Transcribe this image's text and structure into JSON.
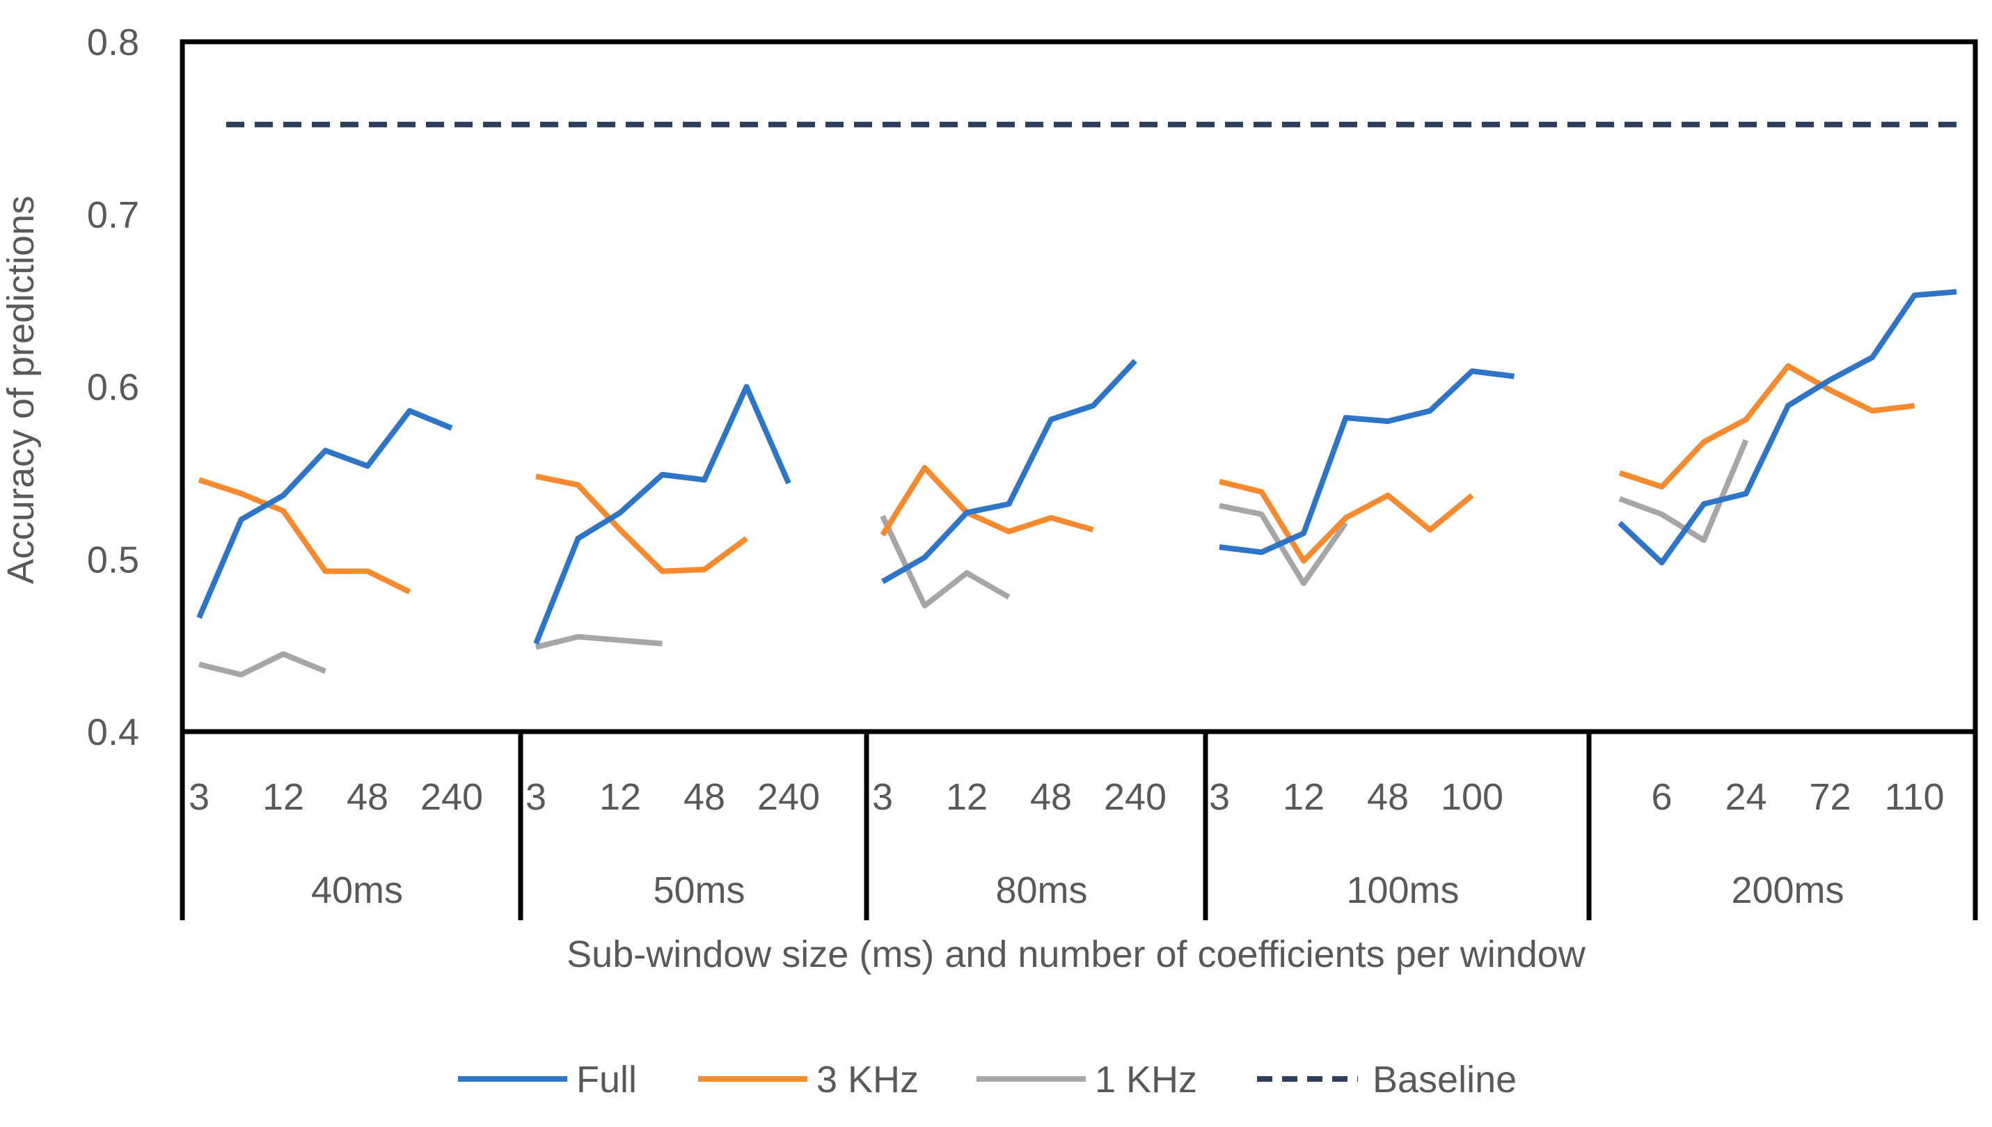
{
  "chart_data": {
    "type": "line",
    "title": "",
    "xlabel": "Sub-window size (ms) and number  of coefficients per window",
    "ylabel": "Accuracy of predictions",
    "ylim": [
      0.4,
      0.8
    ],
    "y_ticks": [
      "0.4",
      "0.5",
      "0.6",
      "0.7",
      "0.8"
    ],
    "grid": false,
    "legend_position": "bottom",
    "colors": {
      "Full": "#2E75C8",
      "3 KHz": "#F7892F",
      "1 KHz": "#A6A6A6",
      "Baseline": "#2E3F5C"
    },
    "groups": [
      {
        "label": "40ms",
        "points": 7,
        "tick_labels": [
          [
            "3",
            0
          ],
          [
            "12",
            2
          ],
          [
            "48",
            4
          ],
          [
            "240",
            6
          ]
        ]
      },
      {
        "label": "50ms",
        "points": 7,
        "tick_labels": [
          [
            "3",
            0
          ],
          [
            "12",
            2
          ],
          [
            "48",
            4
          ],
          [
            "240",
            6
          ]
        ]
      },
      {
        "label": "80ms",
        "points": 7,
        "tick_labels": [
          [
            "3",
            0
          ],
          [
            "12",
            2
          ],
          [
            "48",
            4
          ],
          [
            "240",
            6
          ]
        ]
      },
      {
        "label": "100ms",
        "points": 8,
        "tick_labels": [
          [
            "3",
            0
          ],
          [
            "12",
            2
          ],
          [
            "48",
            4
          ],
          [
            "100",
            6
          ]
        ]
      },
      {
        "label": "200ms",
        "points": 9,
        "tick_labels": [
          [
            "6",
            1
          ],
          [
            "24",
            3
          ],
          [
            "72",
            5
          ],
          [
            "110",
            7
          ]
        ]
      }
    ],
    "series": [
      {
        "name": "Full",
        "values": [
          [
            0.466,
            0.523,
            0.537,
            0.563,
            0.554,
            0.586,
            0.576
          ],
          [
            0.451,
            0.512,
            0.527,
            0.549,
            0.546,
            0.6,
            0.544
          ],
          [
            0.487,
            0.501,
            0.527,
            0.532,
            0.581,
            0.589,
            0.615
          ],
          [
            0.507,
            0.504,
            0.515,
            0.582,
            0.58,
            0.586,
            0.609,
            0.606
          ],
          [
            0.521,
            0.498,
            0.532,
            0.538,
            0.589,
            0.604,
            0.617,
            0.653,
            0.655
          ]
        ]
      },
      {
        "name": "3 KHz",
        "values": [
          [
            0.546,
            0.538,
            0.528,
            0.493,
            0.493,
            0.481
          ],
          [
            0.548,
            0.543,
            0.517,
            0.493,
            0.494,
            0.512
          ],
          [
            0.514,
            0.553,
            0.527,
            0.516,
            0.524,
            0.517
          ],
          [
            0.545,
            0.539,
            0.499,
            0.524,
            0.537,
            0.517,
            0.537
          ],
          [
            0.55,
            0.542,
            0.568,
            0.581,
            0.612,
            0.598,
            0.586,
            0.589
          ]
        ]
      },
      {
        "name": "1 KHz",
        "values": [
          [
            0.439,
            0.433,
            0.445,
            0.435
          ],
          [
            0.449,
            0.455,
            0.453,
            0.451
          ],
          [
            0.525,
            0.473,
            0.492,
            0.478
          ],
          [
            0.531,
            0.526,
            0.486,
            0.521
          ],
          [
            0.535,
            0.526,
            0.511,
            0.569
          ]
        ]
      },
      {
        "name": "Baseline",
        "value": 0.752
      }
    ]
  }
}
